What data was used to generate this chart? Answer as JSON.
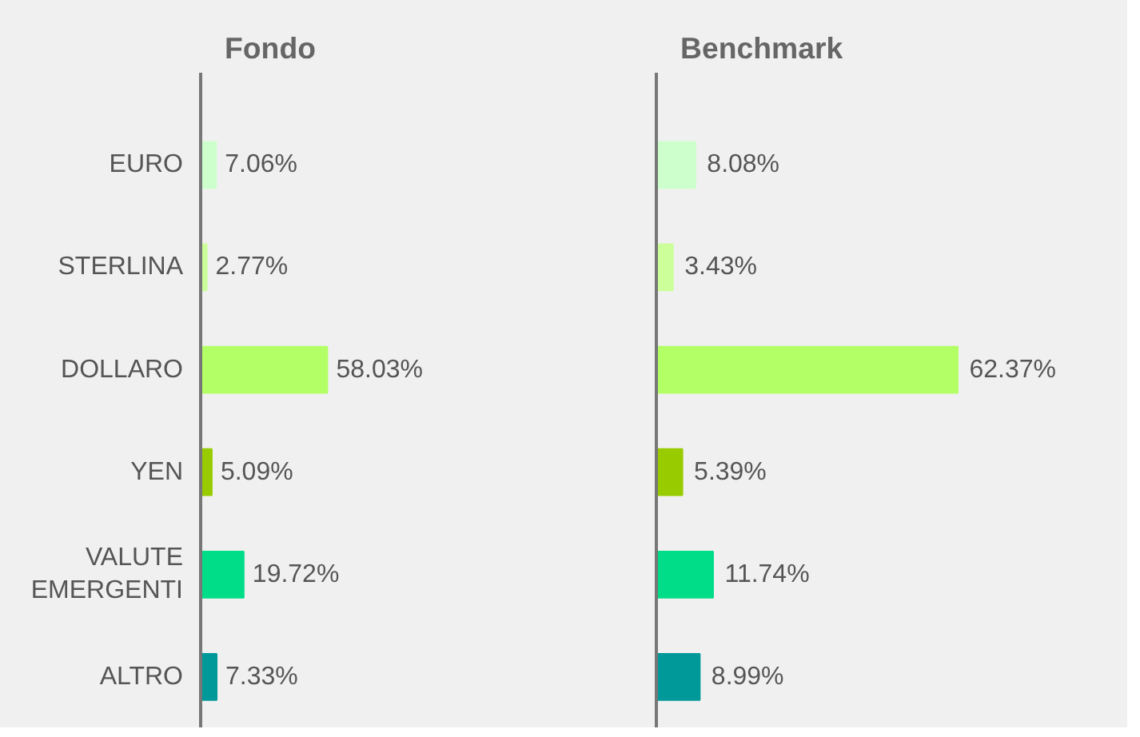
{
  "chart_data": [
    {
      "type": "bar",
      "orientation": "horizontal",
      "title": "Fondo",
      "tick_labels": "y",
      "categories": [
        "EURO",
        "STERLINA",
        "DOLLARO",
        "YEN",
        "VALUTE EMERGENTI",
        "ALTRO"
      ],
      "values": [
        7.06,
        2.77,
        58.03,
        5.09,
        19.72,
        7.33
      ],
      "value_labels": [
        "7.06%",
        "2.77%",
        "58.03%",
        "5.09%",
        "19.72%",
        "7.33%"
      ],
      "colors": [
        "#ccffcc",
        "#ccff99",
        "#b3ff66",
        "#99cc00",
        "#00dd88",
        "#009999"
      ]
    },
    {
      "type": "bar",
      "orientation": "horizontal",
      "title": "Benchmark",
      "tick_labels": false,
      "categories": [
        null,
        null,
        null,
        null,
        null,
        null
      ],
      "values": [
        8.08,
        3.43,
        62.37,
        5.39,
        11.74,
        8.99
      ],
      "value_labels": [
        "8.08%",
        "3.43%",
        "62.37%",
        "5.39%",
        "11.74%",
        "8.99%"
      ],
      "colors": [
        "#ccffcc",
        "#ccff99",
        "#b3ff66",
        "#99cc00",
        "#00dd88",
        "#009999"
      ]
    }
  ]
}
